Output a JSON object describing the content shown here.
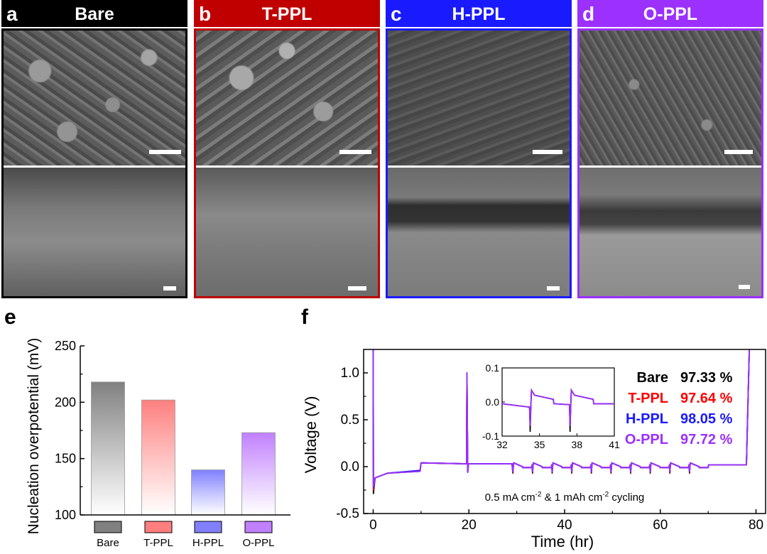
{
  "panels": [
    {
      "letter": "a",
      "name": "Bare",
      "color": "#000000"
    },
    {
      "letter": "b",
      "name": "T-PPL",
      "color": "#c00000"
    },
    {
      "letter": "c",
      "name": "H-PPL",
      "color": "#1a1aff"
    },
    {
      "letter": "d",
      "name": "O-PPL",
      "color": "#9b30ff"
    }
  ],
  "labels": {
    "e": "e",
    "f": "f"
  },
  "chart_data": [
    {
      "type": "bar",
      "ylabel": "Nucleation overpotential (mV)",
      "categories": [
        "Bare",
        "T-PPL",
        "H-PPL",
        "O-PPL"
      ],
      "values": [
        218,
        202,
        140,
        173
      ],
      "colors": [
        "#808080",
        "#ff7f7f",
        "#8080ff",
        "#c080ff"
      ],
      "ylim": [
        100,
        250
      ],
      "yticks": [
        100,
        150,
        200,
        250
      ],
      "legend_swatches": true
    },
    {
      "type": "line",
      "xlabel": "Time (hr)",
      "ylabel": "Voltage (V)",
      "xlim": [
        -2,
        82
      ],
      "ylim": [
        -0.5,
        1.25
      ],
      "xticks": [
        0,
        20,
        40,
        60,
        80
      ],
      "yticks": [
        -0.5,
        0.0,
        0.5,
        1.0
      ],
      "ytick_labels": [
        "-0.5",
        "0.0",
        "0.5",
        "1.0"
      ],
      "annotation": {
        "text": "0.5 mA cm",
        "sup1": "-2",
        "mid": " & 1 mAh cm",
        "sup2": "-2",
        "tail": " cycling"
      },
      "series": [
        {
          "name": "Bare",
          "ce": "97.33 %",
          "color": "#000000"
        },
        {
          "name": "T-PPL",
          "ce": "97.64 %",
          "color": "#ff0000"
        },
        {
          "name": "H-PPL",
          "ce": "98.05 %",
          "color": "#1a1aff"
        },
        {
          "name": "O-PPL",
          "ce": "97.72 %",
          "color": "#9b30ff"
        }
      ],
      "inset": {
        "xlim": [
          32,
          41
        ],
        "ylim": [
          -0.1,
          0.1
        ],
        "xticks": [
          32,
          35,
          38,
          41
        ],
        "yticks": [
          -0.1,
          0.0,
          0.1
        ],
        "ytick_labels": [
          "-0.1",
          "0.0",
          "0.1"
        ]
      }
    }
  ]
}
